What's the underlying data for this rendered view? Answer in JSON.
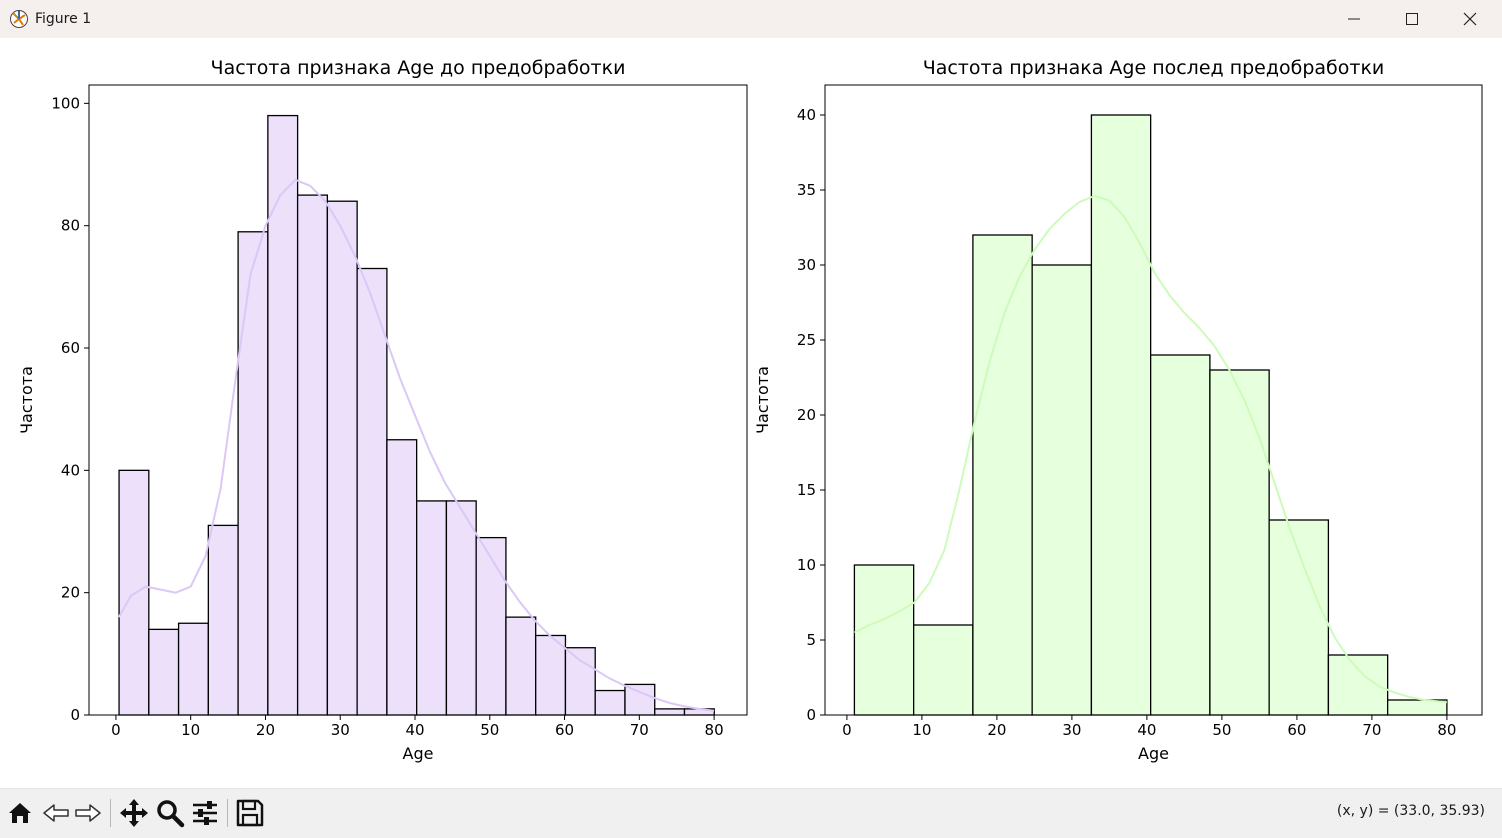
{
  "window": {
    "title": "Figure 1",
    "minimize_icon": "minimize-icon",
    "maximize_icon": "maximize-icon",
    "close_icon": "close-icon"
  },
  "toolbar": {
    "buttons": [
      "home-icon",
      "back-arrow-icon",
      "forward-arrow-icon",
      "pan-icon",
      "zoom-icon",
      "configure-subplots-icon",
      "save-icon"
    ],
    "coords": "(x, y) = (33.0, 35.93)"
  },
  "chart_data": [
    {
      "type": "bar",
      "title": "Частота признака Age до предобработки",
      "xlabel": "Age",
      "ylabel": "Частота",
      "xlim": [
        -3.6,
        84.4
      ],
      "ylim": [
        0,
        103
      ],
      "xticks": [
        0,
        10,
        20,
        30,
        40,
        50,
        60,
        70,
        80
      ],
      "yticks": [
        0,
        20,
        40,
        60,
        80,
        100
      ],
      "bin_start": 0.42,
      "bin_width": 3.98,
      "values": [
        40,
        14,
        15,
        31,
        79,
        98,
        85,
        84,
        73,
        45,
        35,
        35,
        29,
        16,
        13,
        11,
        4,
        5,
        1,
        1
      ],
      "bar_color": "#ece0fb",
      "edge_color": "#000000",
      "kde": {
        "color": "#dbc8f6",
        "x": [
          0.4,
          2,
          4,
          6,
          8,
          10,
          12,
          14,
          16,
          18,
          20,
          22,
          24,
          26,
          28,
          30,
          32,
          34,
          36,
          38,
          40,
          42,
          44,
          46,
          48,
          50,
          52,
          54,
          56,
          58,
          60,
          62,
          64,
          66,
          68,
          70,
          72,
          74,
          76,
          78,
          80
        ],
        "y": [
          16,
          19.5,
          21,
          20.5,
          20,
          21,
          26,
          37,
          55,
          72,
          80,
          85,
          87.5,
          86.5,
          84,
          80,
          75,
          69,
          62,
          55,
          49,
          43,
          38,
          34,
          30,
          26,
          22,
          18.5,
          15.5,
          13,
          11,
          9,
          7.5,
          6,
          4.8,
          3.8,
          2.8,
          2,
          1.4,
          1,
          0.7
        ]
      }
    },
    {
      "type": "bar",
      "title": "Частота признака Age послед предобработки",
      "xlabel": "Age",
      "ylabel": "Частота",
      "xlim": [
        -2.92,
        84.68
      ],
      "ylim": [
        0,
        42
      ],
      "xticks": [
        0,
        10,
        20,
        30,
        40,
        50,
        60,
        70,
        80
      ],
      "yticks": [
        0,
        5,
        10,
        15,
        20,
        25,
        30,
        35,
        40
      ],
      "bin_start": 1.0,
      "bin_width": 7.9,
      "values": [
        10,
        6,
        32,
        30,
        40,
        24,
        23,
        13,
        4,
        1
      ],
      "bar_color": "#e6ffdc",
      "edge_color": "#000000",
      "kde": {
        "color": "#cdfbbb",
        "x": [
          1,
          3,
          5,
          7,
          9,
          11,
          13,
          15,
          17,
          19,
          21,
          23,
          25,
          27,
          29,
          31,
          33,
          35,
          37,
          39,
          41,
          43,
          45,
          47,
          49,
          51,
          53,
          55,
          57,
          59,
          61,
          63,
          65,
          67,
          69,
          71,
          73,
          75,
          77,
          79,
          80
        ],
        "y": [
          5.5,
          6,
          6.4,
          6.9,
          7.5,
          8.8,
          11,
          15,
          19.5,
          23.5,
          26.8,
          29.2,
          31,
          32.4,
          33.4,
          34.2,
          34.6,
          34.3,
          33.2,
          31.5,
          29.5,
          28,
          26.8,
          25.8,
          24.6,
          23,
          21,
          18.5,
          15.5,
          12.5,
          9.8,
          7.3,
          5.2,
          3.7,
          2.6,
          1.9,
          1.5,
          1.2,
          1.0,
          0.9,
          0.85
        ]
      }
    }
  ]
}
